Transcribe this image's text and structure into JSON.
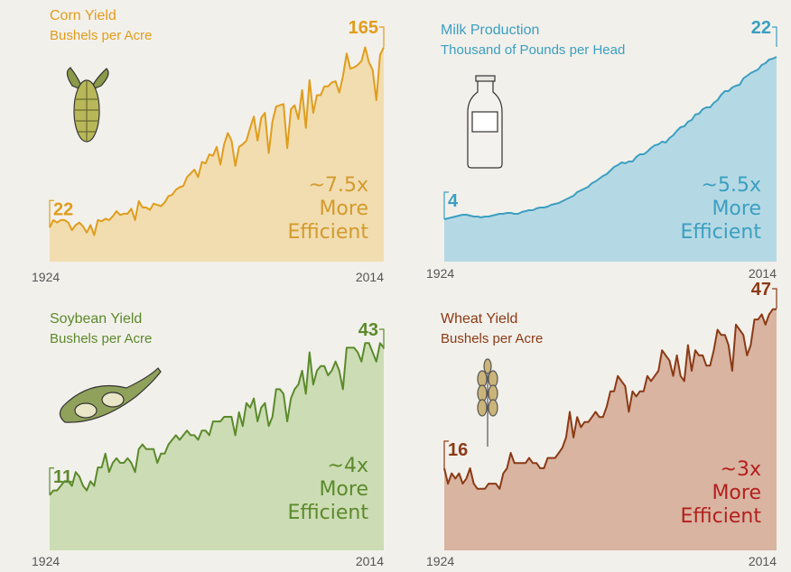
{
  "chart_data": [
    {
      "type": "area",
      "title": "Corn Yield",
      "subtitle": "Bushels per Acre",
      "color": "#e09d1c",
      "fill": "#f1d9a6",
      "annotation_color": "#d39a2c",
      "annotation": [
        "~7.5x",
        "More",
        "Efficient"
      ],
      "x": [
        1924,
        1925,
        1926,
        1927,
        1928,
        1929,
        1930,
        1931,
        1932,
        1933,
        1934,
        1935,
        1936,
        1937,
        1938,
        1939,
        1940,
        1941,
        1942,
        1943,
        1944,
        1945,
        1946,
        1947,
        1948,
        1949,
        1950,
        1951,
        1952,
        1953,
        1954,
        1955,
        1956,
        1957,
        1958,
        1959,
        1960,
        1961,
        1962,
        1963,
        1964,
        1965,
        1966,
        1967,
        1968,
        1969,
        1970,
        1971,
        1972,
        1973,
        1974,
        1975,
        1976,
        1977,
        1978,
        1979,
        1980,
        1981,
        1982,
        1983,
        1984,
        1985,
        1986,
        1987,
        1988,
        1989,
        1990,
        1991,
        1992,
        1993,
        1994,
        1995,
        1996,
        1997,
        1998,
        1999,
        2000,
        2001,
        2002,
        2003,
        2004,
        2005,
        2006,
        2007,
        2008,
        2009,
        2010,
        2011,
        2012,
        2013,
        2014
      ],
      "values": [
        22,
        28,
        26,
        28,
        28,
        26,
        20,
        24,
        26,
        23,
        18,
        24,
        16,
        28,
        27,
        29,
        28,
        31,
        35,
        32,
        33,
        33,
        37,
        28,
        43,
        38,
        38,
        36,
        41,
        40,
        39,
        42,
        47,
        48,
        52,
        54,
        55,
        62,
        65,
        68,
        62,
        74,
        73,
        80,
        79,
        86,
        72,
        88,
        97,
        91,
        71,
        86,
        88,
        91,
        101,
        110,
        91,
        109,
        113,
        81,
        106,
        118,
        119,
        120,
        85,
        116,
        119,
        108,
        131,
        101,
        139,
        113,
        127,
        127,
        134,
        134,
        137,
        138,
        129,
        142,
        160,
        148,
        149,
        151,
        154,
        165,
        153,
        147,
        123,
        159,
        165
      ],
      "xlim": [
        1924,
        2014
      ],
      "xticks": [
        1924,
        2014
      ],
      "ylim": [
        -5,
        181
      ]
    },
    {
      "type": "area",
      "title": "Milk Production",
      "subtitle": "Thousand of Pounds per Head",
      "color": "#3b9fc1",
      "fill": "#aad5e3",
      "annotation_color": "#3b9fc1",
      "annotation": [
        "~5.5x",
        "More",
        "Efficient"
      ],
      "x": [
        1924,
        1925,
        1926,
        1927,
        1928,
        1929,
        1930,
        1931,
        1932,
        1933,
        1934,
        1935,
        1936,
        1937,
        1938,
        1939,
        1940,
        1941,
        1942,
        1943,
        1944,
        1945,
        1946,
        1947,
        1948,
        1949,
        1950,
        1951,
        1952,
        1953,
        1954,
        1955,
        1956,
        1957,
        1958,
        1959,
        1960,
        1961,
        1962,
        1963,
        1964,
        1965,
        1966,
        1967,
        1968,
        1969,
        1970,
        1971,
        1972,
        1973,
        1974,
        1975,
        1976,
        1977,
        1978,
        1979,
        1980,
        1981,
        1982,
        1983,
        1984,
        1985,
        1986,
        1987,
        1988,
        1989,
        1990,
        1991,
        1992,
        1993,
        1994,
        1995,
        1996,
        1997,
        1998,
        1999,
        2000,
        2001,
        2002,
        2003,
        2004,
        2005,
        2006,
        2007,
        2008,
        2009,
        2010,
        2011,
        2012,
        2013,
        2014
      ],
      "values": [
        4,
        4.1,
        4.2,
        4.3,
        4.4,
        4.5,
        4.5,
        4.4,
        4.3,
        4.3,
        4.2,
        4.3,
        4.3,
        4.4,
        4.5,
        4.6,
        4.6,
        4.7,
        4.7,
        4.6,
        4.6,
        4.8,
        4.9,
        5,
        5,
        5.2,
        5.3,
        5.3,
        5.4,
        5.6,
        5.7,
        5.8,
        6,
        6.2,
        6.4,
        6.6,
        7,
        7.2,
        7.4,
        7.6,
        8,
        8.2,
        8.5,
        8.8,
        9,
        9.4,
        9.8,
        10,
        10.3,
        10.2,
        10.4,
        10.4,
        10.9,
        11.2,
        11.2,
        11.5,
        11.9,
        12.2,
        12.3,
        12.6,
        12.5,
        13,
        13.3,
        13.8,
        14.2,
        14.3,
        14.8,
        15,
        15.6,
        15.7,
        16.2,
        16.4,
        16.4,
        16.9,
        17.2,
        17.8,
        18.2,
        18.2,
        18.6,
        18.8,
        18.9,
        19.6,
        19.9,
        20.2,
        20.4,
        20.6,
        21.1,
        21.3,
        21.7,
        21.8,
        22
      ],
      "xlim": [
        1924,
        2014
      ],
      "xticks": [
        1924,
        2014
      ],
      "ylim": [
        -0.7,
        25.3
      ]
    },
    {
      "type": "area",
      "title": "Soybean Yield",
      "subtitle": "Bushels per Acre",
      "color": "#5b8a2b",
      "fill": "#c6d8aa",
      "annotation_color": "#5b8a2b",
      "annotation": [
        "~4x",
        "More",
        "Efficient"
      ],
      "x": [
        1924,
        1925,
        1926,
        1927,
        1928,
        1929,
        1930,
        1931,
        1932,
        1933,
        1934,
        1935,
        1936,
        1937,
        1938,
        1939,
        1940,
        1941,
        1942,
        1943,
        1944,
        1945,
        1946,
        1947,
        1948,
        1949,
        1950,
        1951,
        1952,
        1953,
        1954,
        1955,
        1956,
        1957,
        1958,
        1959,
        1960,
        1961,
        1962,
        1963,
        1964,
        1965,
        1966,
        1967,
        1968,
        1969,
        1970,
        1971,
        1972,
        1973,
        1974,
        1975,
        1976,
        1977,
        1978,
        1979,
        1980,
        1981,
        1982,
        1983,
        1984,
        1985,
        1986,
        1987,
        1988,
        1989,
        1990,
        1991,
        1992,
        1993,
        1994,
        1995,
        1996,
        1997,
        1998,
        1999,
        2000,
        2001,
        2002,
        2003,
        2004,
        2005,
        2006,
        2007,
        2008,
        2009,
        2010,
        2011,
        2012,
        2013,
        2014
      ],
      "values": [
        11,
        12,
        12,
        13,
        14,
        14,
        13,
        16,
        15,
        13,
        12,
        14,
        13,
        17,
        17,
        20,
        16,
        18,
        19,
        18,
        18,
        19,
        18,
        16,
        21,
        22,
        21,
        21,
        21,
        18,
        20,
        20,
        22,
        23,
        24,
        23,
        24,
        25,
        24,
        24,
        23,
        25,
        25,
        24,
        27,
        27,
        27,
        28,
        28,
        28,
        24,
        29,
        26,
        31,
        30,
        32,
        27,
        30,
        31,
        26,
        28,
        34,
        34,
        33,
        27,
        32,
        34,
        35,
        38,
        33,
        42,
        35,
        38,
        39,
        39,
        37,
        38,
        40,
        38,
        34,
        43,
        43,
        43,
        42,
        40,
        44,
        44,
        42,
        40,
        44,
        43
      ],
      "xlim": [
        1924,
        2014
      ],
      "xticks": [
        1924,
        2014
      ],
      "ylim": [
        -1,
        47
      ]
    },
    {
      "type": "area",
      "title": "Wheat Yield",
      "subtitle": "Bushels per Acre",
      "color": "#8b3a15",
      "fill": "#d3a994",
      "annotation_color": "#b3201e",
      "annotation": [
        "~3x",
        "More",
        "Efficient"
      ],
      "x": [
        1924,
        1925,
        1926,
        1927,
        1928,
        1929,
        1930,
        1931,
        1932,
        1933,
        1934,
        1935,
        1936,
        1937,
        1938,
        1939,
        1940,
        1941,
        1942,
        1943,
        1944,
        1945,
        1946,
        1947,
        1948,
        1949,
        1950,
        1951,
        1952,
        1953,
        1954,
        1955,
        1956,
        1957,
        1958,
        1959,
        1960,
        1961,
        1962,
        1963,
        1964,
        1965,
        1966,
        1967,
        1968,
        1969,
        1970,
        1971,
        1972,
        1973,
        1974,
        1975,
        1976,
        1977,
        1978,
        1979,
        1980,
        1981,
        1982,
        1983,
        1984,
        1985,
        1986,
        1987,
        1988,
        1989,
        1990,
        1991,
        1992,
        1993,
        1994,
        1995,
        1996,
        1997,
        1998,
        1999,
        2000,
        2001,
        2002,
        2003,
        2004,
        2005,
        2006,
        2007,
        2008,
        2009,
        2010,
        2011,
        2012,
        2013,
        2014
      ],
      "values": [
        16,
        13,
        15,
        14,
        15,
        13,
        14,
        16,
        13,
        12,
        12,
        12,
        13,
        13,
        13,
        12,
        15,
        16,
        19,
        17,
        17,
        17,
        17,
        18,
        17,
        17,
        16,
        16,
        18,
        18,
        18,
        19,
        20,
        22,
        27,
        22,
        26,
        24,
        25,
        25,
        26,
        27,
        26,
        26,
        28,
        31,
        31,
        34,
        33,
        32,
        27,
        31,
        30,
        31,
        31,
        34,
        33,
        34,
        35,
        39,
        38,
        37,
        34,
        38,
        34,
        33,
        40,
        35,
        39,
        38,
        38,
        36,
        36,
        39,
        43,
        42,
        42,
        40,
        35,
        44,
        43,
        42,
        38,
        40,
        45,
        45,
        46,
        44,
        46,
        47,
        47
      ],
      "xlim": [
        1924,
        2014
      ],
      "xticks": [
        1924,
        2014
      ],
      "ylim": [
        0,
        51
      ]
    }
  ]
}
